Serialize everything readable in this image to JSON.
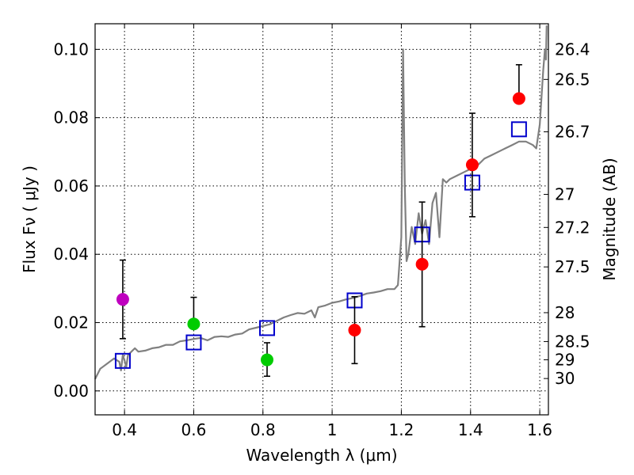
{
  "chart_data": {
    "type": "scatter",
    "xlabel": "Wavelength  λ (μm)",
    "ylabel": "Flux  Fν  ( μJy )",
    "ylabel_right": "Magnitude (AB)",
    "xlim": [
      0.315,
      1.625
    ],
    "ylim": [
      -0.007,
      0.1075
    ],
    "grid": true,
    "x_ticks": [
      {
        "value": 0.4,
        "label": "0.4"
      },
      {
        "value": 0.6,
        "label": "0.6"
      },
      {
        "value": 0.8,
        "label": "0.8"
      },
      {
        "value": 1.0,
        "label": "1"
      },
      {
        "value": 1.2,
        "label": "1.2"
      },
      {
        "value": 1.4,
        "label": "1.4"
      },
      {
        "value": 1.6,
        "label": "1.6"
      }
    ],
    "y_ticks": [
      {
        "value": 0.0,
        "label": "0.00"
      },
      {
        "value": 0.02,
        "label": "0.02"
      },
      {
        "value": 0.04,
        "label": "0.04"
      },
      {
        "value": 0.06,
        "label": "0.06"
      },
      {
        "value": 0.08,
        "label": "0.08"
      },
      {
        "value": 0.1,
        "label": "0.10"
      }
    ],
    "magnitude_ticks": [
      {
        "mag": 26.4,
        "label": "26.4"
      },
      {
        "mag": 26.5,
        "label": "26.5"
      },
      {
        "mag": 26.7,
        "label": "26.7"
      },
      {
        "mag": 27.0,
        "label": "27"
      },
      {
        "mag": 27.2,
        "label": "27.2"
      },
      {
        "mag": 27.5,
        "label": "27.5"
      },
      {
        "mag": 28.0,
        "label": "28"
      },
      {
        "mag": 28.5,
        "label": "28.5"
      },
      {
        "mag": 29.0,
        "label": "29"
      },
      {
        "mag": 30.0,
        "label": "30"
      }
    ],
    "series": [
      {
        "name": "spectrum",
        "kind": "line",
        "color": "#808080",
        "points": [
          [
            0.315,
            0.0035
          ],
          [
            0.33,
            0.0065
          ],
          [
            0.35,
            0.008
          ],
          [
            0.37,
            0.0095
          ],
          [
            0.385,
            0.0085
          ],
          [
            0.39,
            0.006
          ],
          [
            0.395,
            0.0105
          ],
          [
            0.4,
            0.009
          ],
          [
            0.405,
            0.007
          ],
          [
            0.41,
            0.0105
          ],
          [
            0.42,
            0.0115
          ],
          [
            0.43,
            0.0125
          ],
          [
            0.44,
            0.0115
          ],
          [
            0.46,
            0.0118
          ],
          [
            0.48,
            0.0125
          ],
          [
            0.5,
            0.0128
          ],
          [
            0.52,
            0.0135
          ],
          [
            0.54,
            0.0135
          ],
          [
            0.56,
            0.0145
          ],
          [
            0.58,
            0.0148
          ],
          [
            0.6,
            0.0152
          ],
          [
            0.62,
            0.0155
          ],
          [
            0.64,
            0.0148
          ],
          [
            0.66,
            0.0158
          ],
          [
            0.68,
            0.016
          ],
          [
            0.7,
            0.0158
          ],
          [
            0.72,
            0.0165
          ],
          [
            0.74,
            0.0168
          ],
          [
            0.76,
            0.018
          ],
          [
            0.78,
            0.0185
          ],
          [
            0.8,
            0.019
          ],
          [
            0.82,
            0.0195
          ],
          [
            0.84,
            0.0205
          ],
          [
            0.86,
            0.0215
          ],
          [
            0.88,
            0.0222
          ],
          [
            0.9,
            0.0228
          ],
          [
            0.92,
            0.0226
          ],
          [
            0.94,
            0.0236
          ],
          [
            0.95,
            0.0215
          ],
          [
            0.96,
            0.0245
          ],
          [
            0.98,
            0.025
          ],
          [
            1.0,
            0.0258
          ],
          [
            1.02,
            0.0262
          ],
          [
            1.04,
            0.0268
          ],
          [
            1.06,
            0.0272
          ],
          [
            1.08,
            0.0278
          ],
          [
            1.1,
            0.0285
          ],
          [
            1.12,
            0.0288
          ],
          [
            1.14,
            0.0292
          ],
          [
            1.16,
            0.0298
          ],
          [
            1.18,
            0.0298
          ],
          [
            1.19,
            0.031
          ],
          [
            1.2,
            0.045
          ],
          [
            1.205,
            0.1
          ],
          [
            1.21,
            0.06
          ],
          [
            1.215,
            0.038
          ],
          [
            1.22,
            0.04
          ],
          [
            1.23,
            0.048
          ],
          [
            1.24,
            0.043
          ],
          [
            1.25,
            0.052
          ],
          [
            1.26,
            0.046
          ],
          [
            1.27,
            0.05
          ],
          [
            1.28,
            0.043
          ],
          [
            1.29,
            0.055
          ],
          [
            1.3,
            0.058
          ],
          [
            1.31,
            0.045
          ],
          [
            1.32,
            0.062
          ],
          [
            1.33,
            0.061
          ],
          [
            1.34,
            0.062
          ],
          [
            1.36,
            0.063
          ],
          [
            1.38,
            0.064
          ],
          [
            1.4,
            0.065
          ],
          [
            1.42,
            0.066
          ],
          [
            1.44,
            0.068
          ],
          [
            1.46,
            0.069
          ],
          [
            1.48,
            0.07
          ],
          [
            1.5,
            0.071
          ],
          [
            1.52,
            0.072
          ],
          [
            1.54,
            0.073
          ],
          [
            1.56,
            0.073
          ],
          [
            1.58,
            0.072
          ],
          [
            1.59,
            0.071
          ],
          [
            1.6,
            0.078
          ],
          [
            1.61,
            0.094
          ],
          [
            1.615,
            0.1
          ],
          [
            1.618,
            0.097
          ],
          [
            1.62,
            0.107
          ]
        ]
      },
      {
        "name": "model_photometry",
        "kind": "open_square",
        "color": "#0000cc",
        "points": [
          [
            0.395,
            0.0088
          ],
          [
            0.6,
            0.0142
          ],
          [
            0.812,
            0.0184
          ],
          [
            1.065,
            0.0265
          ],
          [
            1.26,
            0.0458
          ],
          [
            1.405,
            0.061
          ],
          [
            1.54,
            0.0766
          ]
        ]
      },
      {
        "name": "observed_photometry",
        "kind": "errorbar_points",
        "points": [
          {
            "x": 0.395,
            "y": 0.0268,
            "err_low": 0.0115,
            "err_high": 0.0115,
            "color": "#bf00bf"
          },
          {
            "x": 0.6,
            "y": 0.0196,
            "err_low": 0.0,
            "err_high": 0.0078,
            "color": "#00cc00"
          },
          {
            "x": 0.812,
            "y": 0.0091,
            "err_low": 0.0048,
            "err_high": 0.005,
            "color": "#00cc00"
          },
          {
            "x": 1.065,
            "y": 0.0178,
            "err_low": 0.0098,
            "err_high": 0.0098,
            "color": "#ff0000"
          },
          {
            "x": 1.26,
            "y": 0.0371,
            "err_low": 0.0183,
            "err_high": 0.0182,
            "color": "#ff0000"
          },
          {
            "x": 1.405,
            "y": 0.0662,
            "err_low": 0.0152,
            "err_high": 0.0151,
            "color": "#ff0000"
          },
          {
            "x": 1.54,
            "y": 0.0856,
            "err_low": 0.0,
            "err_high": 0.0099,
            "color": "#ff0000"
          }
        ]
      }
    ]
  }
}
